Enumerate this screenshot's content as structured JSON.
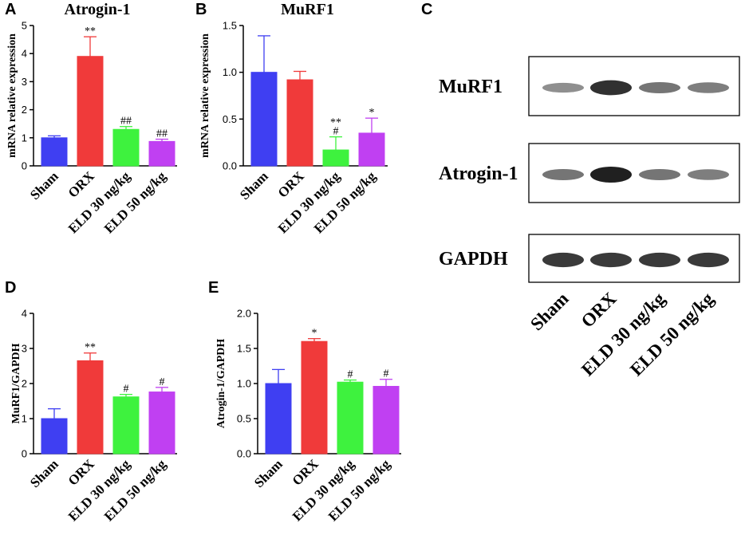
{
  "chart_data": [
    {
      "id": "A",
      "panel": "A",
      "type": "bar",
      "title": "Atrogin-1",
      "ylabel": "mRNA relative expression",
      "xlabel": "",
      "ylim": [
        0,
        5
      ],
      "yticks": [
        "0",
        "1",
        "2",
        "3",
        "4",
        "5"
      ],
      "categories": [
        "Sham",
        "ORX",
        "ELD 30 ng/kg",
        "ELD 50  ng/kg"
      ],
      "values": [
        1.0,
        3.9,
        1.3,
        0.87
      ],
      "errors": [
        0.07,
        0.7,
        0.1,
        0.08
      ],
      "significance": [
        "",
        "**",
        "##",
        "##"
      ],
      "colors": [
        "#3f3ff2",
        "#f03a3a",
        "#3ef23e",
        "#c040f2"
      ]
    },
    {
      "id": "B",
      "panel": "B",
      "type": "bar",
      "title": "MuRF1",
      "ylabel": "mRNA relative expression",
      "xlabel": "",
      "ylim": [
        0,
        1.5
      ],
      "yticks": [
        "0.0",
        "0.5",
        "1.0",
        "1.5"
      ],
      "categories": [
        "Sham",
        "ORX",
        "ELD 30 ng/kg",
        "ELD 50  ng/kg"
      ],
      "values": [
        1.0,
        0.92,
        0.17,
        0.35
      ],
      "errors": [
        0.39,
        0.09,
        0.14,
        0.16
      ],
      "significance": [
        "",
        "",
        "**\n#",
        "*"
      ],
      "colors": [
        "#3f3ff2",
        "#f03a3a",
        "#3ef23e",
        "#c040f2"
      ]
    },
    {
      "id": "D",
      "panel": "D",
      "type": "bar",
      "title": "",
      "ylabel": "MuRF1/GAPDH",
      "xlabel": "",
      "ylim": [
        0,
        4
      ],
      "yticks": [
        "0",
        "1",
        "2",
        "3",
        "4"
      ],
      "categories": [
        "Sham",
        "ORX",
        "ELD 30 ng/kg",
        "ELD 50  ng/kg"
      ],
      "values": [
        1.0,
        2.65,
        1.62,
        1.76
      ],
      "errors": [
        0.28,
        0.22,
        0.07,
        0.13
      ],
      "significance": [
        "",
        "**",
        "#",
        "#"
      ],
      "colors": [
        "#3f3ff2",
        "#f03a3a",
        "#3ef23e",
        "#c040f2"
      ]
    },
    {
      "id": "E",
      "panel": "E",
      "type": "bar",
      "title": "",
      "ylabel": "Atrogin-1/GAPDH",
      "xlabel": "",
      "ylim": [
        0,
        2.0
      ],
      "yticks": [
        "0.0",
        "0.5",
        "1.0",
        "1.5",
        "2.0"
      ],
      "categories": [
        "Sham",
        "ORX",
        "ELD 30 ng/kg",
        "ELD 50  ng/kg"
      ],
      "values": [
        1.0,
        1.6,
        1.02,
        0.96
      ],
      "errors": [
        0.2,
        0.04,
        0.03,
        0.1
      ],
      "significance": [
        "",
        "*",
        "#",
        "#"
      ],
      "colors": [
        "#3f3ff2",
        "#f03a3a",
        "#3ef23e",
        "#c040f2"
      ]
    }
  ],
  "blot": {
    "panel": "C",
    "rows": [
      {
        "label": "MuRF1",
        "intensities": [
          0.35,
          0.9,
          0.5,
          0.45
        ]
      },
      {
        "label": "Atrogin-1",
        "intensities": [
          0.5,
          1.0,
          0.5,
          0.45
        ]
      },
      {
        "label": "GAPDH",
        "intensities": [
          0.85,
          0.85,
          0.85,
          0.85
        ]
      }
    ],
    "lanes": [
      "Sham",
      "ORX",
      "ELD 30 ng/kg",
      "ELD 50 ng/kg"
    ]
  }
}
